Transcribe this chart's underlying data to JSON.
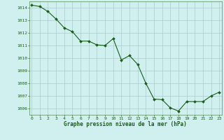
{
  "x": [
    0,
    1,
    2,
    3,
    4,
    5,
    6,
    7,
    8,
    9,
    10,
    11,
    12,
    13,
    14,
    15,
    16,
    17,
    18,
    19,
    20,
    21,
    22,
    23
  ],
  "y": [
    1014.2,
    1014.1,
    1013.7,
    1013.1,
    1012.4,
    1012.1,
    1011.35,
    1011.35,
    1011.05,
    1011.0,
    1011.55,
    1009.85,
    1010.2,
    1009.5,
    1008.0,
    1006.75,
    1006.7,
    1006.05,
    1005.8,
    1006.55,
    1006.55,
    1006.55,
    1007.0,
    1007.3
  ],
  "ylim": [
    1005.5,
    1014.5
  ],
  "yticks": [
    1006,
    1007,
    1008,
    1009,
    1010,
    1011,
    1012,
    1013,
    1014
  ],
  "xlabel": "Graphe pression niveau de la mer (hPa)",
  "bg_color": "#cff0ee",
  "grid_major_color": "#aaccca",
  "grid_minor_color": "#c0e0de",
  "line_color": "#1a5c1a",
  "marker_color": "#1a5c1a",
  "text_color": "#1a5c1a",
  "spine_color": "#5a8a5a"
}
